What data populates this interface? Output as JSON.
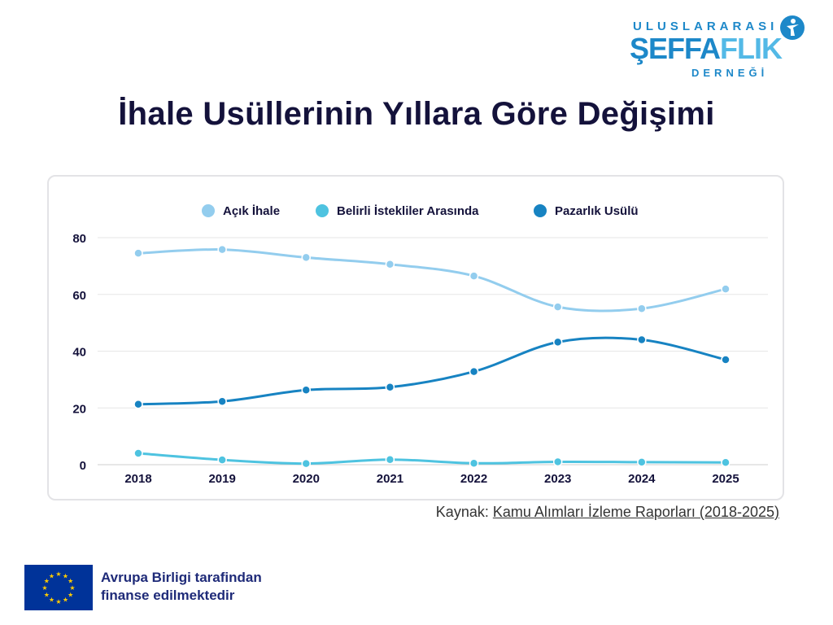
{
  "logo": {
    "line1": "ULUSLARARASI",
    "line2a": "ŞEFFA",
    "line2b": "FLIK",
    "line3": "DERNEĞİ",
    "icon": "transparency-figure-icon"
  },
  "title": "İhale Usüllerinin Yıllara Göre Değişimi",
  "source": {
    "prefix": "Kaynak: ",
    "link_text": "Kamu Alımları İzleme Raporları (2018-2025)"
  },
  "footer": {
    "line1": "Avrupa Birligi tarafindan",
    "line2": "finanse edilmektedir",
    "flag_icon": "eu-flag-icon"
  },
  "colors": {
    "acik": "#93cdee",
    "belirli": "#4ec3e0",
    "pazarlik": "#1783c2",
    "grid": "#e6e6e6",
    "text": "#14123b"
  },
  "chart_data": {
    "type": "line",
    "title": "İhale Usüllerinin Yıllara Göre Değişimi",
    "x": [
      "2018",
      "2019",
      "2020",
      "2021",
      "2022",
      "2023",
      "2024",
      "2025"
    ],
    "ylim": [
      0,
      80
    ],
    "yticks": [
      "0",
      "20",
      "40",
      "60",
      "80"
    ],
    "grid": true,
    "legend_position": "top-center",
    "series": [
      {
        "name": "Açık İhale",
        "color": "#93cdee",
        "values": [
          74.5,
          75.8,
          73.0,
          70.6,
          66.5,
          55.6,
          55.0,
          61.9
        ]
      },
      {
        "name": "Belirli İstekliler Arasında",
        "color": "#4ec3e0",
        "values": [
          4.0,
          1.7,
          0.4,
          1.8,
          0.5,
          1.0,
          0.9,
          0.8
        ]
      },
      {
        "name": "Pazarlık Usülü",
        "color": "#1783c2",
        "values": [
          21.3,
          22.3,
          26.3,
          27.3,
          32.8,
          43.2,
          44.0,
          37.0
        ]
      }
    ]
  }
}
